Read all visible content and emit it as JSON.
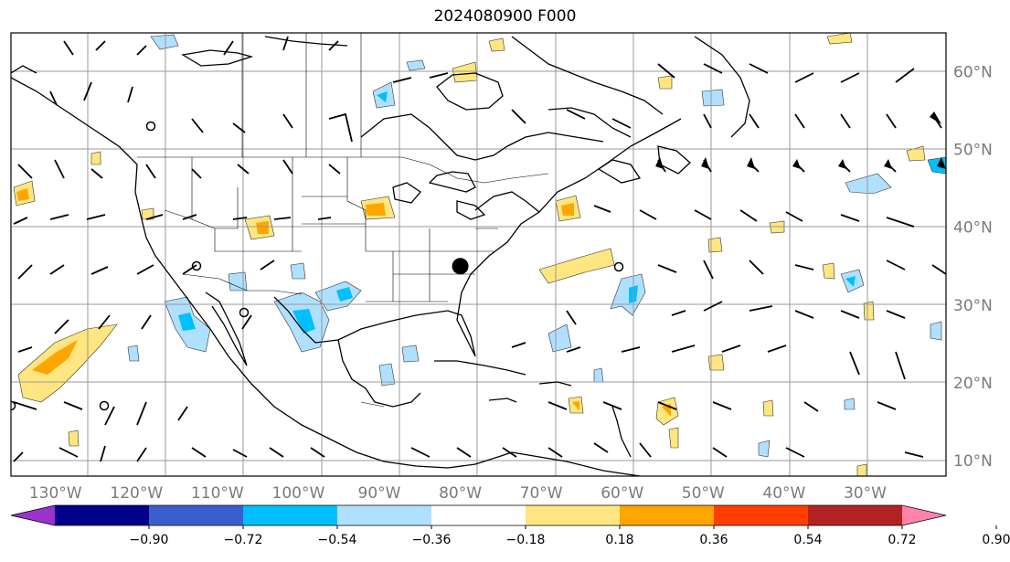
{
  "map": {
    "title": "2024080900 F000",
    "lon_labels": [
      "130°W",
      "120°W",
      "110°W",
      "100°W",
      "90°W",
      "80°W",
      "70°W",
      "60°W",
      "50°W",
      "40°W",
      "30°W"
    ],
    "lat_labels": [
      "60°N",
      "50°N",
      "40°N",
      "30°N",
      "20°N",
      "10°N"
    ],
    "extent": {
      "lon_min": -135.5,
      "lon_max": -20,
      "lat_min": 8,
      "lat_max": 65
    },
    "gridlines": true,
    "marker": {
      "lon": -80,
      "lat": 35,
      "color": "#000000"
    }
  },
  "colorbar": {
    "ticks": [
      "−0.90",
      "−0.72",
      "−0.54",
      "−0.36",
      "−0.18",
      "0.18",
      "0.36",
      "0.54",
      "0.72",
      "0.90"
    ],
    "colors": [
      "#9a32cd",
      "#00008b",
      "#3a5fcd",
      "#00bfff",
      "#b0e0ff",
      "#ffffff",
      "#ffe680",
      "#ffa500",
      "#ff3e00",
      "#b22222",
      "#ff82ab"
    ],
    "extend": "both"
  }
}
